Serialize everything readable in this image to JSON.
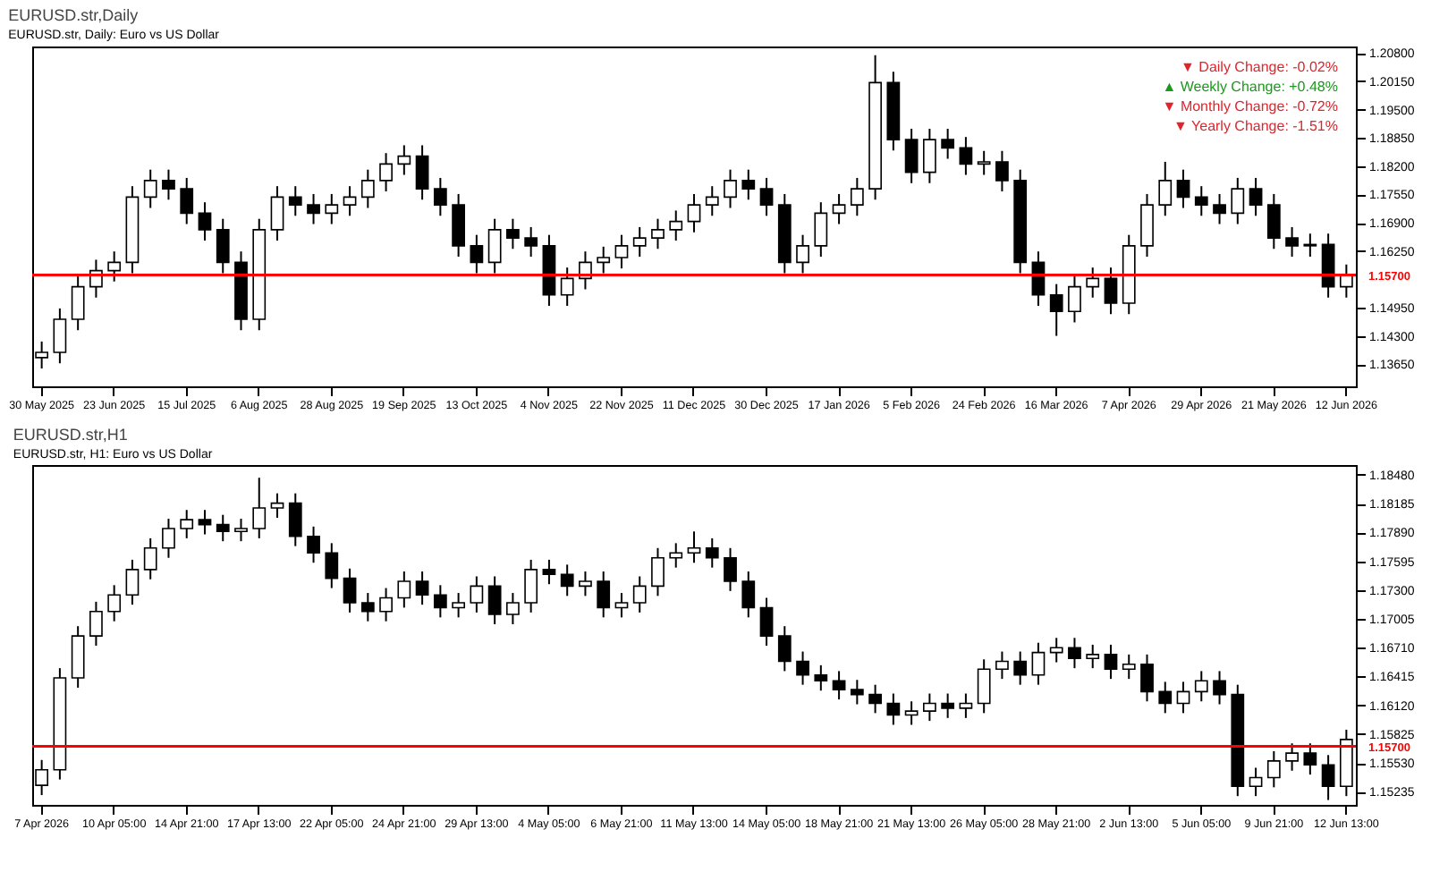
{
  "chart_data": [
    {
      "type": "candlestick",
      "title": "EURUSD.str,Daily",
      "subtitle": "EURUSD.str, Daily:  Euro vs US Dollar",
      "annotations": [
        "▼ Daily Change: -0.02%",
        "▲ Weekly Change: +0.48%",
        "▼ Monthly Change: -0.72%",
        "▼ Yearly Change: -1.51%"
      ],
      "categories": [
        "30 May 2025",
        null,
        null,
        null,
        "23 Jun 2025",
        null,
        null,
        null,
        "15 Jul 2025",
        null,
        null,
        null,
        "6 Aug 2025",
        null,
        null,
        null,
        "28 Aug 2025",
        null,
        null,
        null,
        "19 Sep 2025",
        null,
        null,
        null,
        "13 Oct 2025",
        null,
        null,
        null,
        "4 Nov 2025",
        null,
        null,
        null,
        "22 Nov 2025",
        null,
        null,
        null,
        "11 Dec 2025",
        null,
        null,
        null,
        "30 Dec 2025",
        null,
        null,
        null,
        "17 Jan 2026",
        null,
        null,
        null,
        "5 Feb 2026",
        null,
        null,
        null,
        "24 Feb 2026",
        null,
        null,
        null,
        "16 Mar 2026",
        null,
        null,
        null,
        "7 Apr 2026",
        null,
        null,
        null,
        "29 Apr 2026",
        null,
        null,
        null,
        "21 May 2026",
        null,
        null,
        null,
        "12 Jun 2026"
      ],
      "color": "#000000",
      "ohlc": [
        [
          1.138,
          1.1417,
          1.1355,
          1.1392
        ],
        [
          1.1392,
          1.1493,
          1.1367,
          1.1468
        ],
        [
          1.1468,
          1.1568,
          1.1443,
          1.1543
        ],
        [
          1.1543,
          1.1605,
          1.1518,
          1.158
        ],
        [
          1.158,
          1.1624,
          1.1555,
          1.1599
        ],
        [
          1.1599,
          1.1774,
          1.1574,
          1.1749
        ],
        [
          1.1749,
          1.1812,
          1.1724,
          1.1787
        ],
        [
          1.1787,
          1.1812,
          1.1743,
          1.1768
        ],
        [
          1.1768,
          1.1793,
          1.1687,
          1.1712
        ],
        [
          1.1712,
          1.1737,
          1.1649,
          1.1674
        ],
        [
          1.1674,
          1.1699,
          1.1574,
          1.1599
        ],
        [
          1.1599,
          1.1624,
          1.1443,
          1.1468
        ],
        [
          1.1468,
          1.1699,
          1.1443,
          1.1674
        ],
        [
          1.1674,
          1.1774,
          1.1649,
          1.1749
        ],
        [
          1.1749,
          1.1774,
          1.1706,
          1.1731
        ],
        [
          1.1731,
          1.1756,
          1.1687,
          1.1712
        ],
        [
          1.1712,
          1.1756,
          1.1687,
          1.1731
        ],
        [
          1.1731,
          1.1774,
          1.1706,
          1.1749
        ],
        [
          1.1749,
          1.1812,
          1.1724,
          1.1787
        ],
        [
          1.1787,
          1.185,
          1.1762,
          1.1825
        ],
        [
          1.1825,
          1.1868,
          1.18,
          1.1843
        ],
        [
          1.1843,
          1.1868,
          1.1743,
          1.1768
        ],
        [
          1.1768,
          1.1793,
          1.1706,
          1.1731
        ],
        [
          1.1731,
          1.1756,
          1.1612,
          1.1637
        ],
        [
          1.1637,
          1.1662,
          1.1574,
          1.1599
        ],
        [
          1.1599,
          1.1699,
          1.1574,
          1.1674
        ],
        [
          1.1674,
          1.1699,
          1.163,
          1.1655
        ],
        [
          1.1655,
          1.168,
          1.1612,
          1.1637
        ],
        [
          1.1637,
          1.1662,
          1.1499,
          1.1524
        ],
        [
          1.1524,
          1.1587,
          1.1499,
          1.1562
        ],
        [
          1.1562,
          1.1624,
          1.1537,
          1.1599
        ],
        [
          1.1599,
          1.1635,
          1.1574,
          1.161
        ],
        [
          1.161,
          1.1662,
          1.1585,
          1.1637
        ],
        [
          1.1637,
          1.168,
          1.1612,
          1.1655
        ],
        [
          1.1655,
          1.1699,
          1.163,
          1.1674
        ],
        [
          1.1674,
          1.1718,
          1.1649,
          1.1693
        ],
        [
          1.1693,
          1.1756,
          1.1668,
          1.1731
        ],
        [
          1.1731,
          1.1774,
          1.1706,
          1.1749
        ],
        [
          1.1749,
          1.1812,
          1.1724,
          1.1787
        ],
        [
          1.1787,
          1.1812,
          1.1743,
          1.1768
        ],
        [
          1.1768,
          1.1793,
          1.1706,
          1.1731
        ],
        [
          1.1731,
          1.1756,
          1.1574,
          1.1599
        ],
        [
          1.1599,
          1.1662,
          1.1574,
          1.1637
        ],
        [
          1.1637,
          1.1737,
          1.1612,
          1.1712
        ],
        [
          1.1712,
          1.1756,
          1.1687,
          1.1731
        ],
        [
          1.1731,
          1.1793,
          1.1706,
          1.1768
        ],
        [
          1.1768,
          1.2075,
          1.1743,
          1.2012
        ],
        [
          1.2012,
          1.2037,
          1.1856,
          1.1881
        ],
        [
          1.1881,
          1.1906,
          1.1781,
          1.1806
        ],
        [
          1.1806,
          1.1906,
          1.1781,
          1.1881
        ],
        [
          1.1881,
          1.1906,
          1.1837,
          1.1862
        ],
        [
          1.1862,
          1.1887,
          1.18,
          1.1825
        ],
        [
          1.1825,
          1.1855,
          1.18,
          1.183
        ],
        [
          1.183,
          1.1855,
          1.1762,
          1.1787
        ],
        [
          1.1787,
          1.1812,
          1.1574,
          1.1599
        ],
        [
          1.1599,
          1.1624,
          1.1499,
          1.1524
        ],
        [
          1.1524,
          1.1549,
          1.143,
          1.1486
        ],
        [
          1.1486,
          1.1568,
          1.1461,
          1.1543
        ],
        [
          1.1543,
          1.1587,
          1.1518,
          1.1562
        ],
        [
          1.1562,
          1.1587,
          1.148,
          1.1505
        ],
        [
          1.1505,
          1.1662,
          1.148,
          1.1637
        ],
        [
          1.1637,
          1.1756,
          1.1612,
          1.1731
        ],
        [
          1.1731,
          1.183,
          1.1706,
          1.1787
        ],
        [
          1.1787,
          1.1812,
          1.1724,
          1.1749
        ],
        [
          1.1749,
          1.1774,
          1.1706,
          1.1731
        ],
        [
          1.1731,
          1.1756,
          1.1687,
          1.1712
        ],
        [
          1.1712,
          1.1793,
          1.1687,
          1.1768
        ],
        [
          1.1768,
          1.1793,
          1.1706,
          1.1731
        ],
        [
          1.1731,
          1.1756,
          1.163,
          1.1655
        ],
        [
          1.1655,
          1.168,
          1.1612,
          1.1637
        ],
        [
          1.1637,
          1.1665,
          1.1612,
          1.164
        ],
        [
          1.164,
          1.1665,
          1.1518,
          1.1543
        ],
        [
          1.1543,
          1.1594,
          1.1518,
          1.1569
        ]
      ],
      "ylim": [
        1.1314,
        1.2095
      ],
      "yticks": [
        {
          "value": 1.208,
          "label": "1.20800"
        },
        {
          "value": 1.2015,
          "label": "1.20150"
        },
        {
          "value": 1.195,
          "label": "1.19500"
        },
        {
          "value": 1.1885,
          "label": "1.18850"
        },
        {
          "value": 1.182,
          "label": "1.18200"
        },
        {
          "value": 1.1755,
          "label": "1.17550"
        },
        {
          "value": 1.169,
          "label": "1.16900"
        },
        {
          "value": 1.1625,
          "label": "1.16250"
        },
        {
          "value": 1.1495,
          "label": "1.14950"
        },
        {
          "value": 1.143,
          "label": "1.14300"
        },
        {
          "value": 1.1365,
          "label": "1.13650"
        }
      ],
      "ref_lines": [
        {
          "axis": "y",
          "value": 1.157,
          "label": "1.15700",
          "color": "#ff0000"
        }
      ]
    },
    {
      "type": "candlestick",
      "title": "EURUSD.str,H1",
      "subtitle": "EURUSD.str, H1:  Euro vs US Dollar",
      "categories": [
        "7 Apr 2026",
        null,
        null,
        null,
        "10 Apr 05:00",
        null,
        null,
        null,
        "14 Apr 21:00",
        null,
        null,
        null,
        "17 Apr 13:00",
        null,
        null,
        null,
        "22 Apr 05:00",
        null,
        null,
        null,
        "24 Apr 21:00",
        null,
        null,
        null,
        "29 Apr 13:00",
        null,
        null,
        null,
        "4 May 05:00",
        null,
        null,
        null,
        "6 May 21:00",
        null,
        null,
        null,
        "11 May 13:00",
        null,
        null,
        null,
        "14 May 05:00",
        null,
        null,
        null,
        "18 May 21:00",
        null,
        null,
        null,
        "21 May 13:00",
        null,
        null,
        null,
        "26 May 05:00",
        null,
        null,
        null,
        "28 May 21:00",
        null,
        null,
        null,
        "2 Jun 13:00",
        null,
        null,
        null,
        "5 Jun 05:00",
        null,
        null,
        null,
        "9 Jun 21:00",
        null,
        null,
        null,
        "12 Jun 13:00"
      ],
      "color": "#000000",
      "ohlc": [
        [
          1.153,
          1.1556,
          1.152,
          1.1546
        ],
        [
          1.1546,
          1.165,
          1.1536,
          1.164
        ],
        [
          1.164,
          1.1693,
          1.163,
          1.1683
        ],
        [
          1.1683,
          1.1718,
          1.1673,
          1.1708
        ],
        [
          1.1708,
          1.1735,
          1.1698,
          1.1725
        ],
        [
          1.1725,
          1.1761,
          1.1715,
          1.1751
        ],
        [
          1.1751,
          1.1783,
          1.1741,
          1.1773
        ],
        [
          1.1773,
          1.1803,
          1.1763,
          1.1793
        ],
        [
          1.1793,
          1.1812,
          1.1783,
          1.1802
        ],
        [
          1.1802,
          1.1812,
          1.1787,
          1.1797
        ],
        [
          1.1797,
          1.1807,
          1.178,
          1.179
        ],
        [
          1.179,
          1.1803,
          1.178,
          1.1793
        ],
        [
          1.1793,
          1.1845,
          1.1783,
          1.1814
        ],
        [
          1.1814,
          1.1829,
          1.1804,
          1.1819
        ],
        [
          1.1819,
          1.1829,
          1.1775,
          1.1785
        ],
        [
          1.1785,
          1.1795,
          1.1758,
          1.1768
        ],
        [
          1.1768,
          1.1778,
          1.1732,
          1.1742
        ],
        [
          1.1742,
          1.1752,
          1.1707,
          1.1717
        ],
        [
          1.1717,
          1.1727,
          1.1698,
          1.1708
        ],
        [
          1.1708,
          1.1732,
          1.1698,
          1.1722
        ],
        [
          1.1722,
          1.1749,
          1.1712,
          1.1739
        ],
        [
          1.1739,
          1.1749,
          1.1715,
          1.1725
        ],
        [
          1.1725,
          1.1735,
          1.1702,
          1.1712
        ],
        [
          1.1712,
          1.1727,
          1.1702,
          1.1717
        ],
        [
          1.1717,
          1.1744,
          1.1707,
          1.1734
        ],
        [
          1.1734,
          1.1744,
          1.1695,
          1.1705
        ],
        [
          1.1705,
          1.1727,
          1.1695,
          1.1717
        ],
        [
          1.1717,
          1.1761,
          1.1707,
          1.1751
        ],
        [
          1.1751,
          1.1761,
          1.1736,
          1.1746
        ],
        [
          1.1746,
          1.1756,
          1.1724,
          1.1734
        ],
        [
          1.1734,
          1.1749,
          1.1724,
          1.1739
        ],
        [
          1.1739,
          1.1749,
          1.1702,
          1.1712
        ],
        [
          1.1712,
          1.1727,
          1.1702,
          1.1717
        ],
        [
          1.1717,
          1.1744,
          1.1707,
          1.1734
        ],
        [
          1.1734,
          1.1773,
          1.1724,
          1.1763
        ],
        [
          1.1763,
          1.1778,
          1.1753,
          1.1768
        ],
        [
          1.1768,
          1.179,
          1.1758,
          1.1773
        ],
        [
          1.1773,
          1.1783,
          1.1753,
          1.1763
        ],
        [
          1.1763,
          1.1773,
          1.1729,
          1.1739
        ],
        [
          1.1739,
          1.1749,
          1.1702,
          1.1712
        ],
        [
          1.1712,
          1.1722,
          1.1673,
          1.1683
        ],
        [
          1.1683,
          1.1693,
          1.1647,
          1.1657
        ],
        [
          1.1657,
          1.1667,
          1.1633,
          1.1643
        ],
        [
          1.1643,
          1.1653,
          1.1627,
          1.1637
        ],
        [
          1.1637,
          1.1647,
          1.1618,
          1.1628
        ],
        [
          1.1628,
          1.1638,
          1.1613,
          1.1623
        ],
        [
          1.1623,
          1.1633,
          1.1604,
          1.1614
        ],
        [
          1.1614,
          1.1624,
          1.1592,
          1.1602
        ],
        [
          1.1602,
          1.1616,
          1.1592,
          1.1606
        ],
        [
          1.1606,
          1.1624,
          1.1596,
          1.1614
        ],
        [
          1.1614,
          1.1624,
          1.1599,
          1.1609
        ],
        [
          1.1609,
          1.1624,
          1.1599,
          1.1614
        ],
        [
          1.1614,
          1.1659,
          1.1604,
          1.1649
        ],
        [
          1.1649,
          1.1667,
          1.1639,
          1.1657
        ],
        [
          1.1657,
          1.1667,
          1.1633,
          1.1643
        ],
        [
          1.1643,
          1.1676,
          1.1633,
          1.1666
        ],
        [
          1.1666,
          1.1681,
          1.1656,
          1.1671
        ],
        [
          1.1671,
          1.1681,
          1.165,
          1.166
        ],
        [
          1.166,
          1.1674,
          1.165,
          1.1664
        ],
        [
          1.1664,
          1.1674,
          1.1639,
          1.1649
        ],
        [
          1.1649,
          1.1664,
          1.1639,
          1.1654
        ],
        [
          1.1654,
          1.1664,
          1.1616,
          1.1626
        ],
        [
          1.1626,
          1.1636,
          1.1604,
          1.1614
        ],
        [
          1.1614,
          1.1636,
          1.1604,
          1.1626
        ],
        [
          1.1626,
          1.1647,
          1.1616,
          1.1637
        ],
        [
          1.1637,
          1.1647,
          1.1613,
          1.1623
        ],
        [
          1.1623,
          1.1633,
          1.1519,
          1.1529
        ],
        [
          1.1529,
          1.1548,
          1.1519,
          1.1538
        ],
        [
          1.1538,
          1.1565,
          1.1528,
          1.1555
        ],
        [
          1.1555,
          1.1573,
          1.1545,
          1.1563
        ],
        [
          1.1563,
          1.1573,
          1.1541,
          1.1551
        ],
        [
          1.1551,
          1.1561,
          1.1515,
          1.1529
        ],
        [
          1.1529,
          1.1587,
          1.1519,
          1.1577
        ]
      ],
      "ylim": [
        1.151,
        1.1858
      ],
      "yticks": [
        {
          "value": 1.1848,
          "label": "1.18480"
        },
        1.18185,
        {
          "value": 1.1789,
          "label": "1.17890"
        },
        1.17595,
        {
          "value": 1.173,
          "label": "1.17300"
        },
        1.17005,
        {
          "value": 1.1671,
          "label": "1.16710"
        },
        1.16415,
        {
          "value": 1.1612,
          "label": "1.16120"
        },
        1.15825,
        {
          "value": 1.1553,
          "label": "1.15530"
        },
        1.15235
      ],
      "ref_lines": [
        {
          "axis": "y",
          "value": 1.157,
          "label": "1.15700",
          "color": "#ff0000"
        }
      ]
    }
  ]
}
